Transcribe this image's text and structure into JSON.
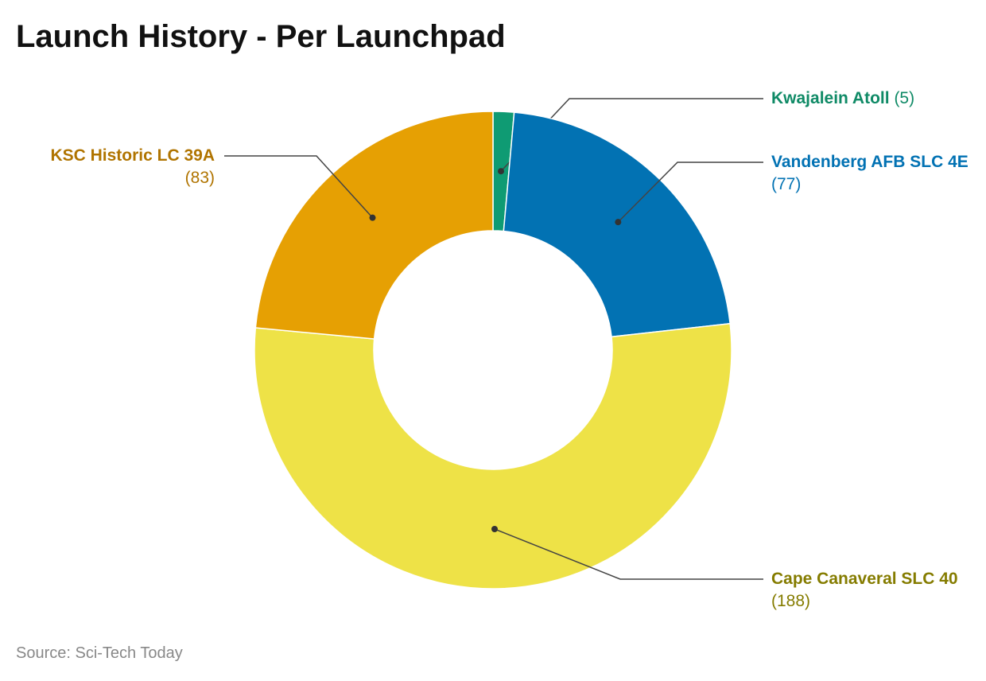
{
  "title": "Launch History - Per Launchpad",
  "source": "Source: Sci-Tech Today",
  "chart_data": {
    "type": "pie",
    "donut": true,
    "title": "Launch History - Per Launchpad",
    "slices": [
      {
        "label": "Kwajalein Atoll",
        "value": 5,
        "value_text": "(5)",
        "color": "#0f9b73"
      },
      {
        "label": "Vandenberg AFB SLC 4E",
        "value": 77,
        "value_text": "(77)",
        "color": "#0272b3"
      },
      {
        "label": "Cape Canaveral SLC 40",
        "value": 188,
        "value_text": "(188)",
        "color": "#eee247"
      },
      {
        "label": "KSC Historic LC 39A",
        "value": 83,
        "value_text": "(83)",
        "color": "#e6a003"
      }
    ],
    "label_colors": [
      "#0f8a66",
      "#0272b3",
      "#857c00",
      "#b07400"
    ]
  }
}
